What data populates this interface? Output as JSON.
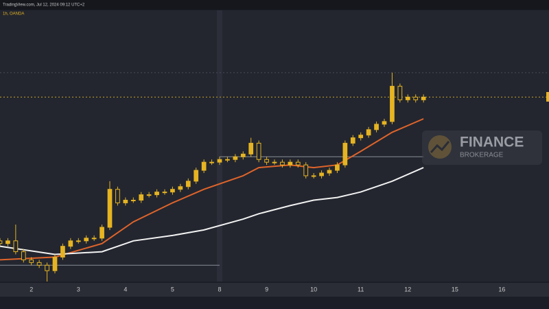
{
  "chart_data": {
    "type": "candlestick",
    "header": "TradingView.com, Jul 12, 2024 09:12 UTC+2",
    "subheader": "1h, OANDA",
    "watermark": {
      "title": "FINANCE",
      "subtitle": "BROKERAGE"
    },
    "color": "#e6b422",
    "x": [
      -4,
      -3,
      -2,
      -1,
      0,
      1,
      2,
      3,
      4,
      5,
      6,
      7,
      8,
      9,
      10,
      11,
      12,
      13,
      14,
      15,
      16,
      17,
      18,
      19,
      20,
      21,
      22,
      23,
      24,
      25,
      26,
      27,
      28,
      29,
      30,
      31,
      32,
      33,
      34,
      35,
      36,
      37,
      38,
      39,
      40,
      41,
      42,
      43,
      44,
      45,
      46,
      47,
      48,
      49,
      50
    ],
    "open": [
      15,
      14,
      15,
      11,
      8,
      7,
      6,
      4,
      9,
      13,
      15,
      15,
      16,
      16,
      20,
      34,
      29,
      30,
      30,
      32,
      32,
      33,
      33,
      34,
      35,
      37,
      41,
      44,
      44,
      45,
      45,
      46,
      47,
      51,
      45,
      44,
      44,
      43,
      44,
      43,
      39,
      39,
      40,
      41,
      43,
      51,
      53,
      54,
      56,
      58,
      59,
      72,
      67,
      68,
      67
    ],
    "high": [
      16,
      16,
      21,
      12,
      9,
      8,
      7,
      10,
      14,
      16,
      16,
      17,
      17,
      21,
      37,
      35,
      31,
      31,
      33,
      33,
      34,
      34,
      35,
      36,
      38,
      42,
      45,
      45,
      46,
      46,
      47,
      48,
      53,
      52,
      46,
      45,
      45,
      45,
      45,
      44,
      40,
      41,
      42,
      44,
      52,
      54,
      55,
      57,
      59,
      60,
      77,
      73,
      69,
      69,
      69
    ],
    "low": [
      13,
      13,
      10,
      7,
      6,
      5,
      0,
      3,
      8,
      12,
      14,
      14,
      15,
      15,
      19,
      28,
      28,
      29,
      29,
      31,
      31,
      32,
      32,
      33,
      34,
      36,
      40,
      43,
      43,
      44,
      44,
      45,
      46,
      44,
      43,
      43,
      42,
      42,
      42,
      38,
      38,
      38,
      39,
      40,
      42,
      50,
      52,
      53,
      55,
      57,
      58,
      66,
      66,
      66,
      66
    ],
    "close": [
      14,
      15,
      11,
      8,
      7,
      6,
      4,
      9,
      13,
      15,
      15,
      16,
      16,
      20,
      34,
      29,
      30,
      30,
      32,
      32,
      33,
      33,
      34,
      35,
      37,
      41,
      44,
      44,
      45,
      45,
      46,
      47,
      51,
      45,
      44,
      44,
      43,
      44,
      43,
      39,
      39,
      40,
      41,
      43,
      51,
      53,
      54,
      56,
      58,
      59,
      72,
      67,
      68,
      67,
      68
    ],
    "lines": [
      {
        "color": "#e0642a",
        "x": [
          -4,
          3,
          9,
          13,
          18,
          22,
          27,
          29,
          33,
          36,
          39,
          42,
          46,
          50
        ],
        "values": [
          8,
          9,
          14,
          22,
          29,
          34,
          39,
          42,
          43,
          42,
          43,
          48,
          55,
          60
        ]
      },
      {
        "color": "#f2f2f2",
        "x": [
          -4,
          3,
          9,
          13,
          18,
          22,
          27,
          29,
          33,
          36,
          39,
          42,
          46,
          50
        ],
        "values": [
          13,
          10,
          11,
          15,
          17,
          19,
          23,
          25,
          28,
          30,
          31,
          33,
          37,
          42
        ]
      }
    ],
    "levels": [
      {
        "value": 68,
        "from": -4,
        "to": 66,
        "color": "#c9a227",
        "style": "dotted"
      },
      {
        "value": 77,
        "from": -4,
        "to": 66,
        "color": "#4a4e5a",
        "style": "dotted"
      },
      {
        "value": 46,
        "from": 24,
        "to": 50,
        "color": "#8a8d96",
        "style": "solid"
      },
      {
        "value": 6,
        "from": -4,
        "to": 24,
        "color": "#8a8d96",
        "style": "solid"
      }
    ],
    "separator_x": 24,
    "xlim": [
      -4,
      66
    ],
    "ylim": [
      0,
      100
    ],
    "xticks": [
      {
        "value": 0,
        "label": "2"
      },
      {
        "value": 6,
        "label": "3"
      },
      {
        "value": 12,
        "label": "4"
      },
      {
        "value": 18,
        "label": "5"
      },
      {
        "value": 24,
        "label": "8"
      },
      {
        "value": 30,
        "label": "9"
      },
      {
        "value": 36,
        "label": "10"
      },
      {
        "value": 42,
        "label": "11"
      },
      {
        "value": 48,
        "label": "12"
      },
      {
        "value": 54,
        "label": "15"
      },
      {
        "value": 60,
        "label": "16"
      }
    ]
  }
}
